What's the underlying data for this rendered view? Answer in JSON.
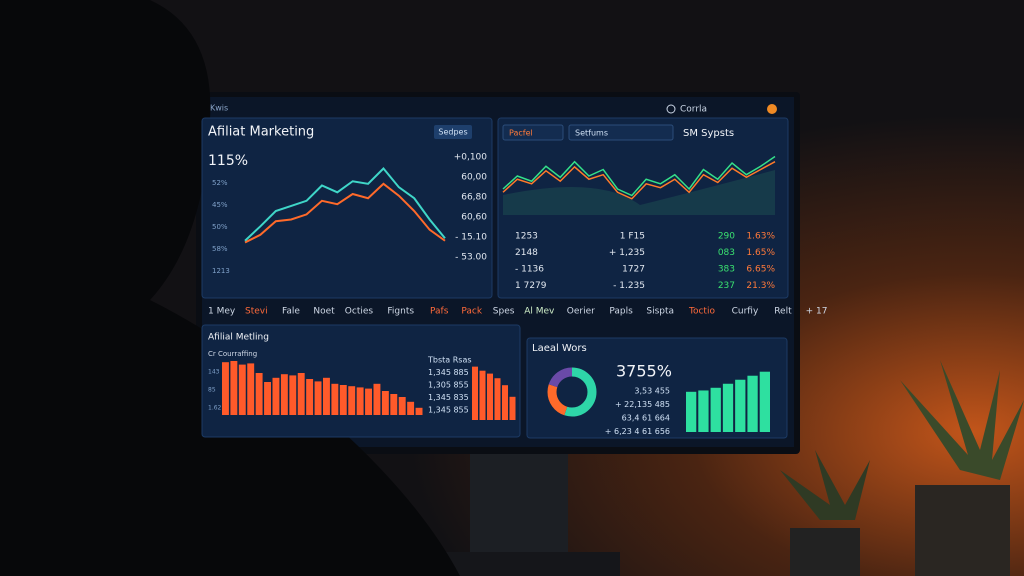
{
  "nav": {
    "brand": "Kwis",
    "search": "Corrla"
  },
  "panel1": {
    "title": "Afiliat Marketing",
    "button": "Sedpes",
    "stat": "115%",
    "left_labels": [
      "52%",
      "45%",
      "50%",
      "58%",
      "1213"
    ],
    "right_labels": [
      "+0,100",
      "60,00",
      "66,80",
      "60,60",
      "- 15.10",
      "- 53.00"
    ],
    "ylim": [
      0,
      100
    ],
    "series": [
      {
        "color": "#3fd6c8",
        "values": [
          5,
          22,
          40,
          46,
          52,
          70,
          62,
          75,
          72,
          90,
          68,
          55,
          30,
          8
        ]
      },
      {
        "color": "#ff6a2a",
        "values": [
          3,
          12,
          28,
          30,
          36,
          52,
          48,
          60,
          55,
          72,
          58,
          40,
          18,
          5
        ]
      }
    ]
  },
  "panel2": {
    "tabs": [
      "Pacfel",
      "Setfums"
    ],
    "title": "SM Sypsts",
    "ylim": [
      0,
      100
    ],
    "series": [
      {
        "color": "#34e08a",
        "values": [
          40,
          60,
          52,
          75,
          58,
          82,
          60,
          70,
          40,
          30,
          55,
          48,
          62,
          40,
          70,
          55,
          80,
          62,
          75,
          90
        ]
      },
      {
        "color": "#ff7a2a",
        "values": [
          35,
          55,
          48,
          68,
          52,
          74,
          55,
          62,
          35,
          25,
          48,
          42,
          55,
          35,
          62,
          50,
          72,
          58,
          70,
          82
        ]
      }
    ],
    "rows": [
      [
        "1253",
        "1 F15",
        "290",
        "1.63%"
      ],
      [
        "2148",
        "+ 1,235",
        "083",
        "1.65%"
      ],
      [
        "- 1136",
        "1727",
        "383",
        "6.65%"
      ],
      [
        "1 7279",
        "- 1.235",
        "237",
        "21.3%"
      ]
    ]
  },
  "tabs": [
    "1 Mey",
    "Stevi",
    "Fale",
    "Noet",
    "Octies",
    "Fignts",
    "Pafs",
    "Pack",
    "Spes",
    "Al Mev",
    "Oerier",
    "Papls",
    "Sispta",
    "Toctio",
    "Curfiy",
    "Relt",
    "+ 17"
  ],
  "panel3": {
    "title": "Afilial Metling",
    "subtitle": "Cr Courraffing",
    "left_labels": [
      "143",
      "85",
      "1.62"
    ],
    "ylim": [
      0,
      100
    ],
    "color": "#ff5a2a",
    "values": [
      88,
      90,
      84,
      86,
      70,
      55,
      62,
      68,
      66,
      70,
      60,
      56,
      62,
      52,
      50,
      48,
      46,
      44,
      52,
      40,
      35,
      30,
      22,
      12
    ],
    "right_list": [
      "Tbsta Rsas",
      "1,345 885",
      "1,305 855",
      "1,345 835",
      "1,345 855"
    ],
    "values2": [
      92,
      85,
      80,
      72,
      60,
      40
    ]
  },
  "panel4": {
    "title": "Laeal Wors",
    "stat": "3755%",
    "list": [
      "3,53 455",
      "+ 22,135 485",
      "63,4 61 664",
      "+ 6,23 4 61 656"
    ],
    "donut": [
      {
        "color": "#2ed6a8",
        "value": 55
      },
      {
        "color": "#ff6a2a",
        "value": 25
      },
      {
        "color": "#6a4aa8",
        "value": 20
      }
    ],
    "ylim": [
      0,
      100
    ],
    "color": "#2ee0a0",
    "values": [
      60,
      62,
      66,
      72,
      78,
      84,
      90
    ]
  }
}
